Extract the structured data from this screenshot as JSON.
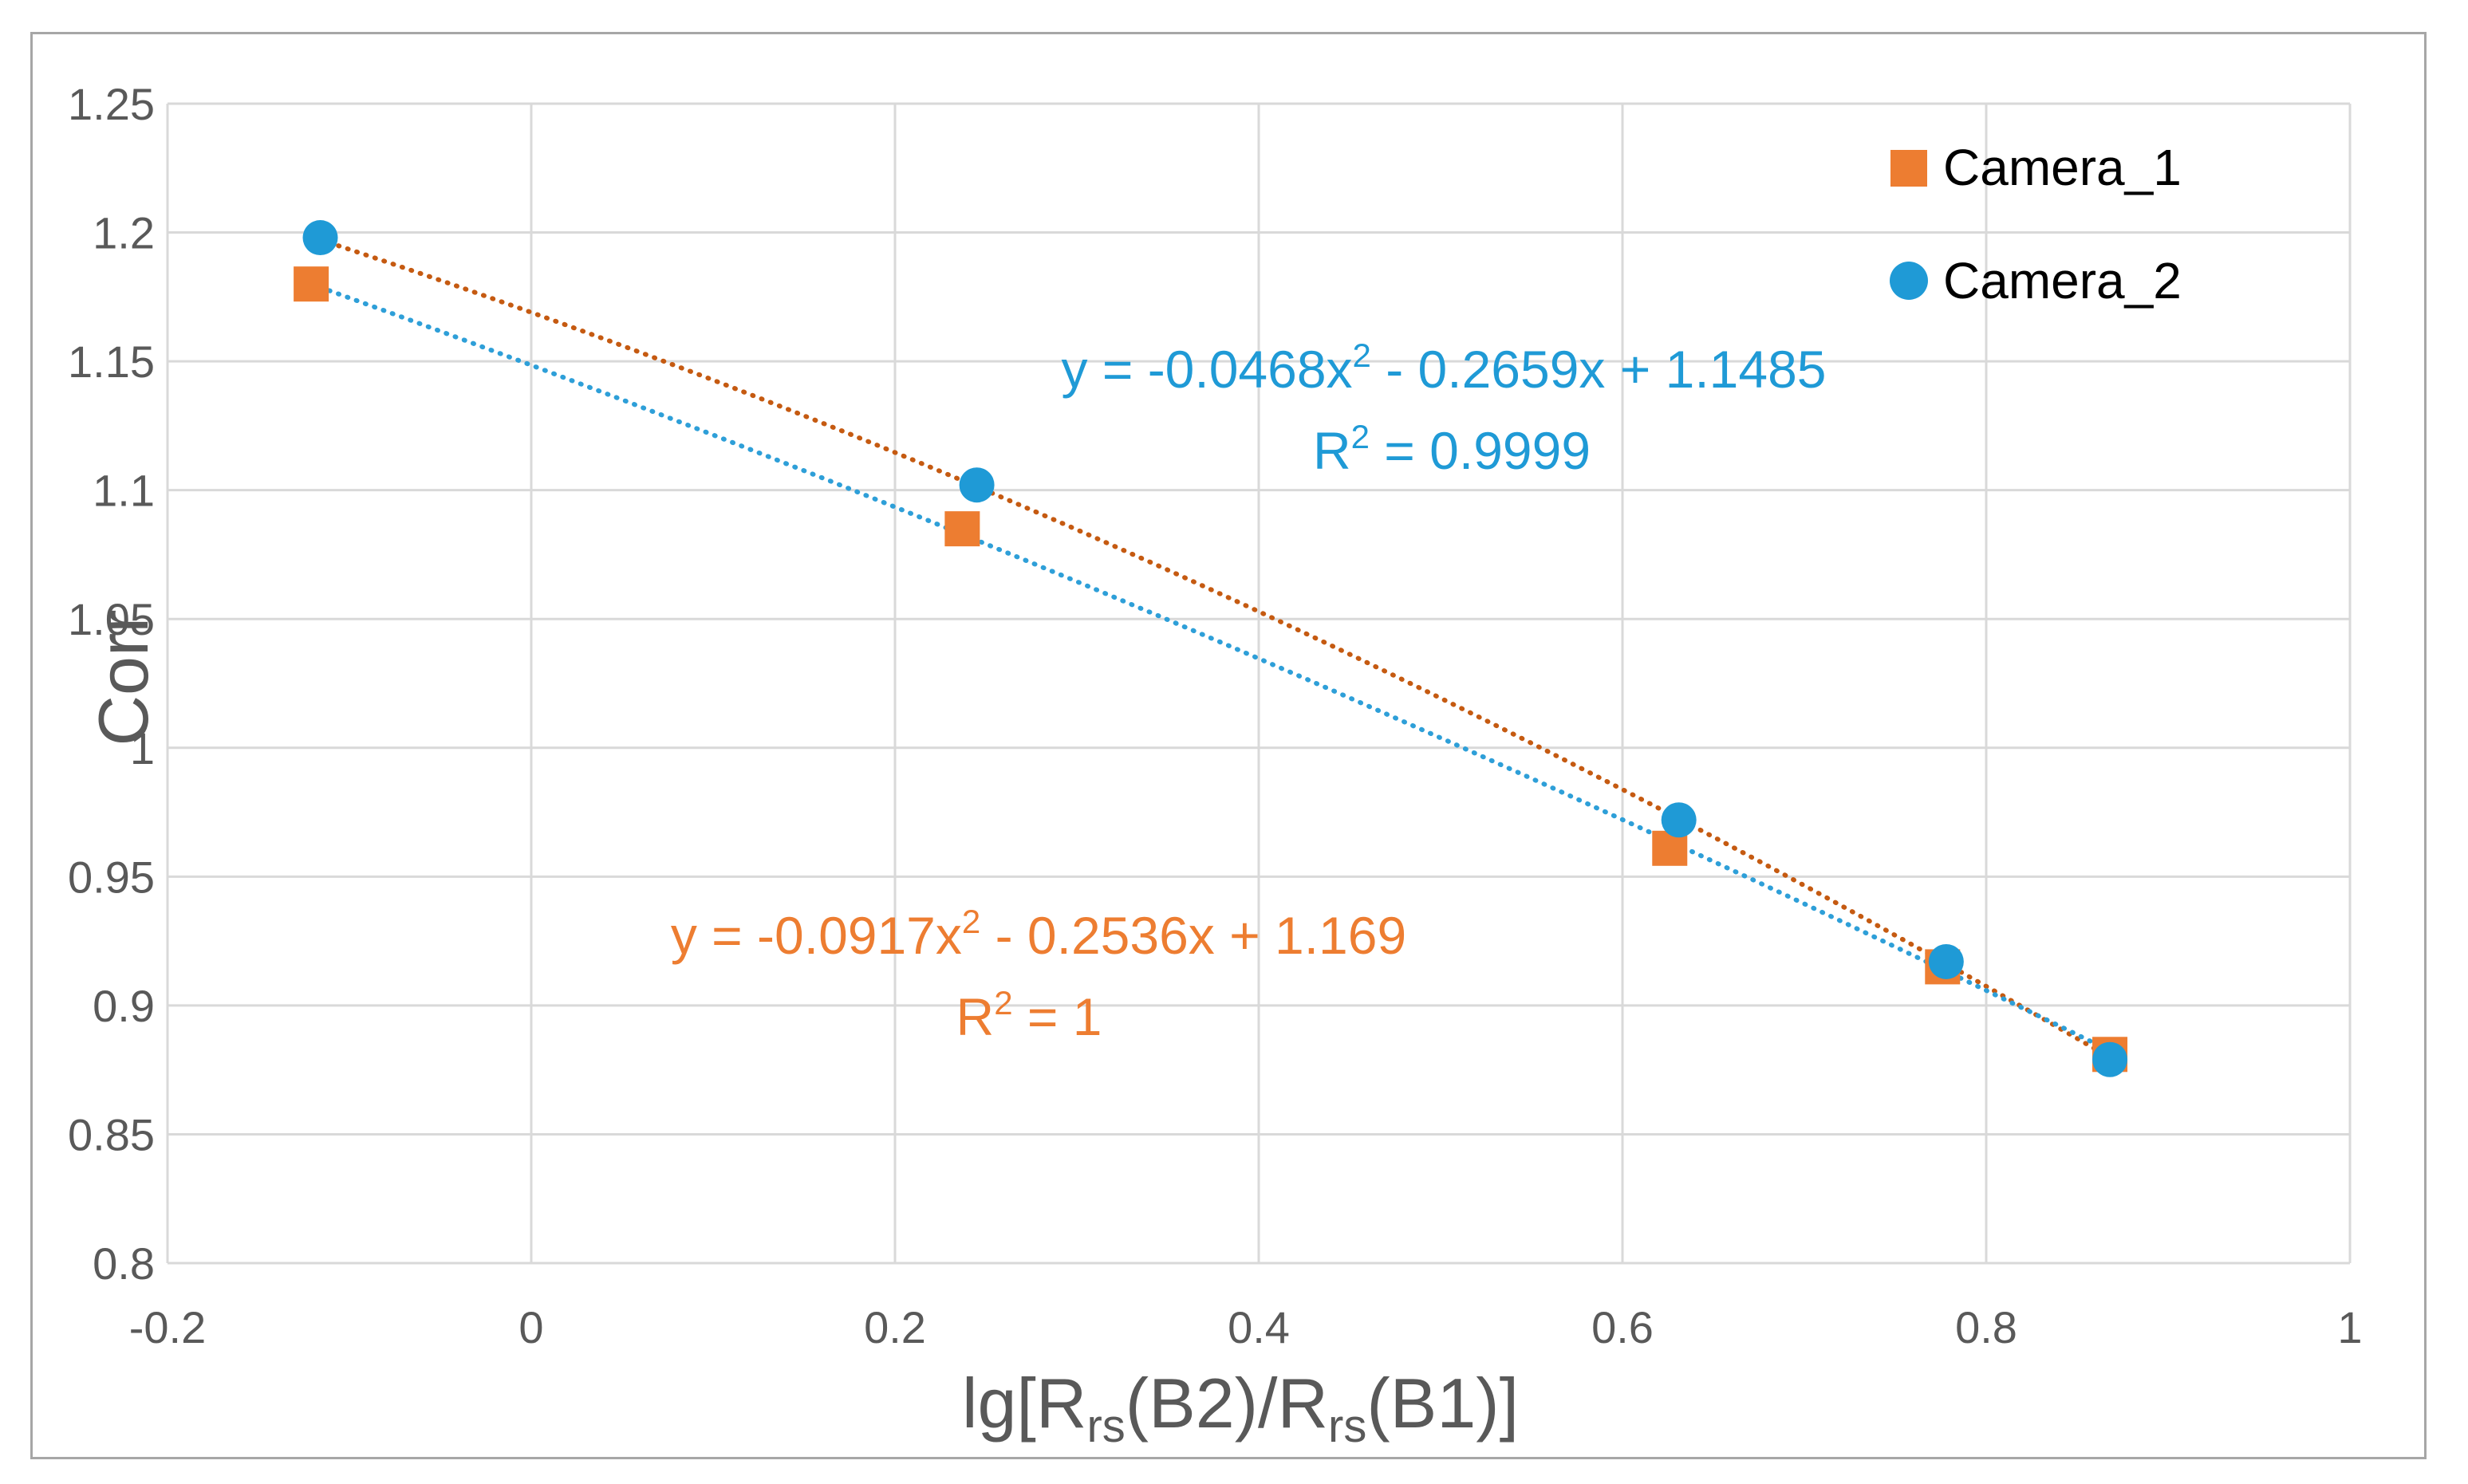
{
  "chart_data": {
    "type": "scatter",
    "title": "",
    "xlabel_parts": [
      "lg[R",
      "rs",
      "(B2)/R",
      "rs",
      "(B1)]"
    ],
    "ylabel": "Corr",
    "xlim": [
      -0.2,
      1
    ],
    "ylim": [
      0.8,
      1.25
    ],
    "x_ticks": [
      -0.2,
      0,
      0.2,
      0.4,
      0.6,
      0.8,
      1
    ],
    "x_tick_labels": [
      "-0.2",
      "0",
      "0.2",
      "0.4",
      "0.6",
      "0.8",
      "1"
    ],
    "y_ticks": [
      0.8,
      0.85,
      0.9,
      0.95,
      1,
      1.05,
      1.1,
      1.15,
      1.2,
      1.25
    ],
    "y_tick_labels": [
      "0.8",
      "0.85",
      "0.9",
      "0.95",
      "1",
      "1.05",
      "1.1",
      "1.15",
      "1.2",
      "1.25"
    ],
    "grid": true,
    "legend_position": "top-right",
    "series": [
      {
        "name": "Camera_1",
        "marker": "square",
        "color": "#ed7d31",
        "trendline_color": "#c55a11",
        "x": [
          -0.121,
          0.237,
          0.626,
          0.776,
          0.868
        ],
        "y": [
          1.18,
          1.085,
          0.961,
          0.915,
          0.881
        ],
        "trendline": {
          "type": "poly2",
          "a": -0.0917,
          "b": -0.2536,
          "c": 1.169
        },
        "equation_main": "y = -0.0917x",
        "equation_sup": "2",
        "equation_rest": " - 0.2536x + 1.169",
        "r2_label": "R",
        "r2_sup": "2",
        "r2_rest": " = 1"
      },
      {
        "name": "Camera_2",
        "marker": "circle",
        "color": "#1f9ad6",
        "trendline_color": "#2e9fd8",
        "x": [
          -0.116,
          0.245,
          0.631,
          0.778,
          0.868
        ],
        "y": [
          1.198,
          1.102,
          0.972,
          0.917,
          0.879
        ],
        "trendline": {
          "type": "poly2",
          "a": -0.0468,
          "b": -0.2659,
          "c": 1.1485
        },
        "equation_main": "y = -0.0468x",
        "equation_sup": "2",
        "equation_rest": " - 0.2659x + 1.1485",
        "r2_label": "R",
        "r2_sup": "2",
        "r2_rest": " = 0.9999"
      }
    ]
  },
  "colors": {
    "grid": "#d9d9d9",
    "tick_text": "#595959",
    "frame": "#a6a6a6"
  }
}
